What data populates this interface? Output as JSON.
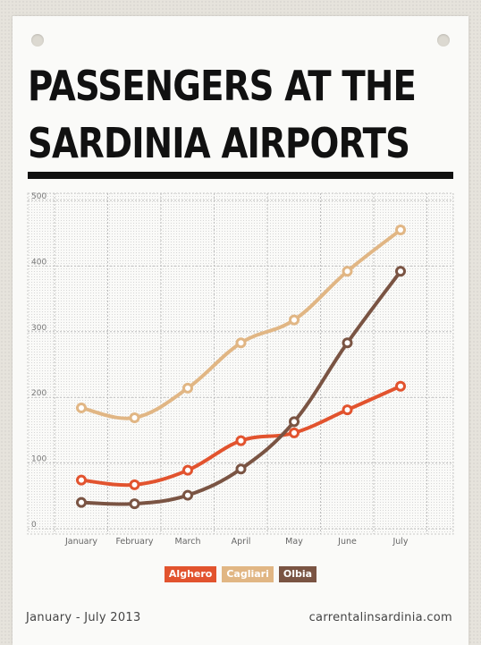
{
  "header": {
    "title_line1": "PASSENGERS AT THE",
    "title_line2": "SARDINIA AIRPORTS"
  },
  "footer": {
    "period": "January - July 2013",
    "source": "carrentalinsardinia.com"
  },
  "colors": {
    "alghero": "#e2532e",
    "cagliari": "#e1b684",
    "olbia": "#7a5443"
  },
  "chart_data": {
    "type": "line",
    "categories": [
      "January",
      "February",
      "March",
      "April",
      "May",
      "June",
      "July"
    ],
    "ylim": [
      0,
      500
    ],
    "yticks": [
      0,
      100,
      200,
      300,
      400,
      500
    ],
    "grid": true,
    "legend_position": "bottom",
    "series": [
      {
        "name": "Alghero",
        "color": "#e2532e",
        "values": [
          74,
          67,
          89,
          134,
          146,
          181,
          217
        ]
      },
      {
        "name": "Cagliari",
        "color": "#e1b684",
        "values": [
          184,
          169,
          214,
          283,
          318,
          392,
          455
        ]
      },
      {
        "name": "Olbia",
        "color": "#7a5443",
        "values": [
          40,
          38,
          51,
          91,
          163,
          283,
          392
        ]
      }
    ]
  }
}
